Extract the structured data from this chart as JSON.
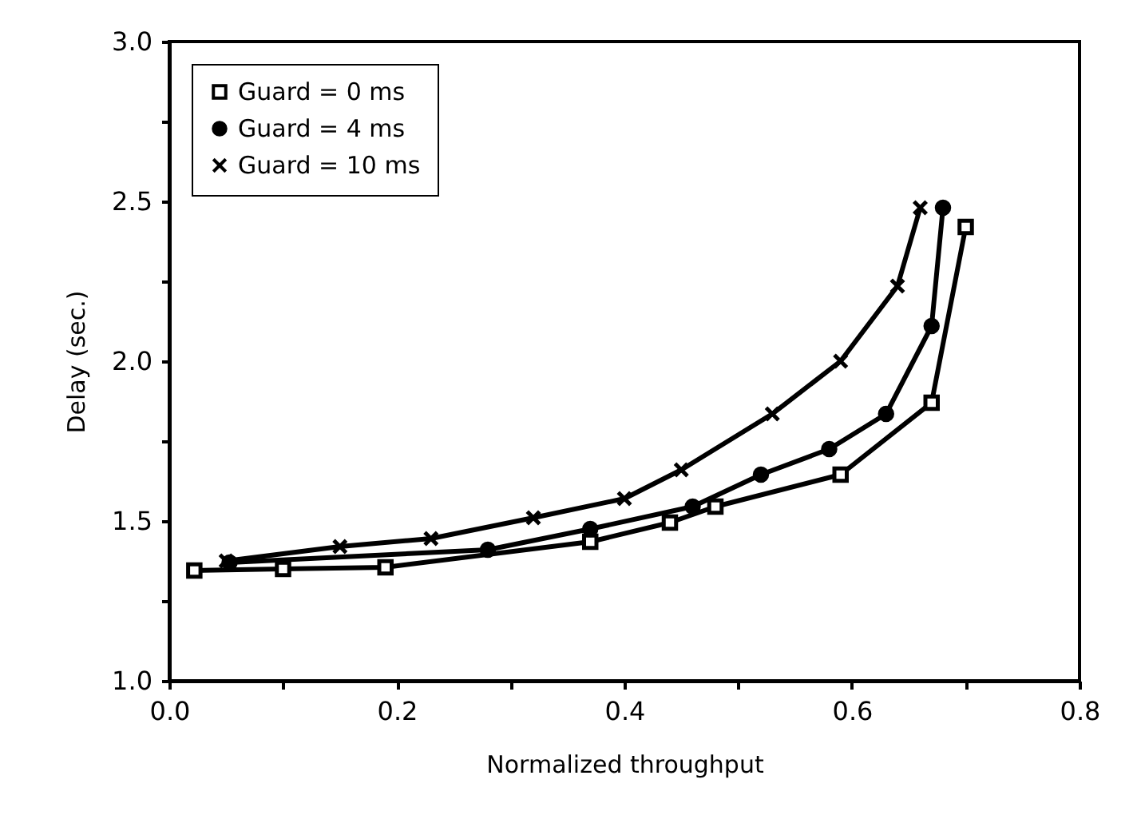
{
  "chart_data": {
    "type": "line",
    "xlabel": "Normalized throughput",
    "ylabel": "Delay (sec.)",
    "xlim": [
      0,
      0.8
    ],
    "ylim": [
      1,
      3
    ],
    "xticks": [
      {
        "value": 0,
        "label": "0.0"
      },
      {
        "value": 0.1,
        "label": null
      },
      {
        "value": 0.2,
        "label": "0.2"
      },
      {
        "value": 0.3,
        "label": null
      },
      {
        "value": 0.4,
        "label": "0.4"
      },
      {
        "value": 0.5,
        "label": null
      },
      {
        "value": 0.6,
        "label": "0.6"
      },
      {
        "value": 0.7,
        "label": null
      },
      {
        "value": 0.8,
        "label": "0.8"
      }
    ],
    "yticks": [
      {
        "value": 1,
        "label": "1.0"
      },
      {
        "value": 1.25,
        "label": null
      },
      {
        "value": 1.5,
        "label": "1.5"
      },
      {
        "value": 1.75,
        "label": null
      },
      {
        "value": 2,
        "label": "2.0"
      },
      {
        "value": 2.25,
        "label": null
      },
      {
        "value": 2.5,
        "label": "2.5"
      },
      {
        "value": 2.75,
        "label": null
      },
      {
        "value": 3,
        "label": "3.0"
      }
    ],
    "grid": false,
    "legend": "top left",
    "line_style": "solid",
    "series": [
      {
        "name": "Guard = 0 ms",
        "color": "#000000",
        "marker": "square",
        "x": [
          0.022,
          0.1,
          0.19,
          0.37,
          0.44,
          0.48,
          0.59,
          0.67,
          0.7
        ],
        "values": [
          1.345,
          1.35,
          1.355,
          1.435,
          1.495,
          1.545,
          1.645,
          1.87,
          2.42
        ]
      },
      {
        "name": "Guard = 4 ms",
        "color": "#000000",
        "marker": "circle",
        "x": [
          0.053,
          0.28,
          0.37,
          0.46,
          0.52,
          0.58,
          0.63,
          0.67,
          0.68
        ],
        "values": [
          1.37,
          1.41,
          1.475,
          1.545,
          1.645,
          1.725,
          1.835,
          2.11,
          2.48
        ]
      },
      {
        "name": "Guard = 10 ms",
        "color": "#000000",
        "marker": "cross",
        "x": [
          0.05,
          0.15,
          0.23,
          0.32,
          0.4,
          0.45,
          0.53,
          0.59,
          0.64,
          0.66
        ],
        "values": [
          1.375,
          1.42,
          1.445,
          1.51,
          1.57,
          1.66,
          1.835,
          2.0,
          2.235,
          2.48
        ]
      }
    ]
  }
}
